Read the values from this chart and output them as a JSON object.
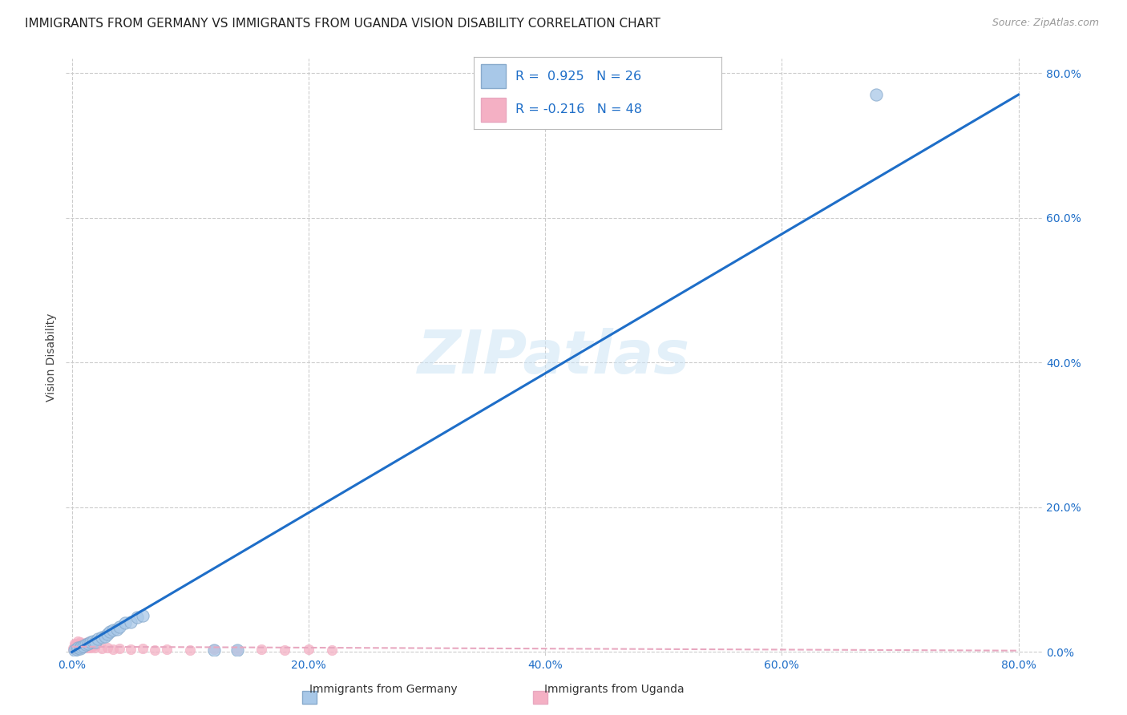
{
  "title": "IMMIGRANTS FROM GERMANY VS IMMIGRANTS FROM UGANDA VISION DISABILITY CORRELATION CHART",
  "source": "Source: ZipAtlas.com",
  "ylabel": "Vision Disability",
  "x_tick_labels": [
    "0.0%",
    "20.0%",
    "40.0%",
    "60.0%",
    "80.0%"
  ],
  "y_tick_labels": [
    "0.0%",
    "20.0%",
    "40.0%",
    "60.0%",
    "80.0%"
  ],
  "xlim": [
    -0.005,
    0.82
  ],
  "ylim": [
    -0.005,
    0.82
  ],
  "grid_color": "#cccccc",
  "background_color": "#ffffff",
  "watermark": "ZIPatlas",
  "germany_scatter": [
    [
      0.002,
      0.003
    ],
    [
      0.004,
      0.004
    ],
    [
      0.005,
      0.006
    ],
    [
      0.007,
      0.005
    ],
    [
      0.008,
      0.007
    ],
    [
      0.01,
      0.008
    ],
    [
      0.012,
      0.01
    ],
    [
      0.014,
      0.012
    ],
    [
      0.016,
      0.014
    ],
    [
      0.018,
      0.015
    ],
    [
      0.02,
      0.014
    ],
    [
      0.022,
      0.018
    ],
    [
      0.025,
      0.02
    ],
    [
      0.028,
      0.022
    ],
    [
      0.03,
      0.025
    ],
    [
      0.032,
      0.028
    ],
    [
      0.035,
      0.03
    ],
    [
      0.038,
      0.032
    ],
    [
      0.04,
      0.035
    ],
    [
      0.045,
      0.04
    ],
    [
      0.05,
      0.042
    ],
    [
      0.055,
      0.048
    ],
    [
      0.06,
      0.05
    ],
    [
      0.12,
      0.003
    ],
    [
      0.14,
      0.003
    ],
    [
      0.68,
      0.77
    ]
  ],
  "uganda_scatter": [
    [
      0.001,
      0.005
    ],
    [
      0.002,
      0.008
    ],
    [
      0.002,
      0.012
    ],
    [
      0.003,
      0.006
    ],
    [
      0.003,
      0.01
    ],
    [
      0.004,
      0.004
    ],
    [
      0.004,
      0.008
    ],
    [
      0.005,
      0.01
    ],
    [
      0.005,
      0.015
    ],
    [
      0.006,
      0.006
    ],
    [
      0.006,
      0.012
    ],
    [
      0.007,
      0.008
    ],
    [
      0.007,
      0.014
    ],
    [
      0.008,
      0.006
    ],
    [
      0.008,
      0.01
    ],
    [
      0.009,
      0.008
    ],
    [
      0.009,
      0.012
    ],
    [
      0.01,
      0.006
    ],
    [
      0.01,
      0.01
    ],
    [
      0.011,
      0.008
    ],
    [
      0.011,
      0.012
    ],
    [
      0.012,
      0.006
    ],
    [
      0.012,
      0.01
    ],
    [
      0.013,
      0.008
    ],
    [
      0.013,
      0.014
    ],
    [
      0.014,
      0.006
    ],
    [
      0.014,
      0.01
    ],
    [
      0.015,
      0.008
    ],
    [
      0.016,
      0.006
    ],
    [
      0.017,
      0.01
    ],
    [
      0.018,
      0.008
    ],
    [
      0.019,
      0.006
    ],
    [
      0.02,
      0.01
    ],
    [
      0.025,
      0.005
    ],
    [
      0.03,
      0.006
    ],
    [
      0.035,
      0.004
    ],
    [
      0.04,
      0.005
    ],
    [
      0.05,
      0.004
    ],
    [
      0.06,
      0.005
    ],
    [
      0.07,
      0.003
    ],
    [
      0.08,
      0.004
    ],
    [
      0.1,
      0.003
    ],
    [
      0.12,
      0.004
    ],
    [
      0.14,
      0.003
    ],
    [
      0.16,
      0.004
    ],
    [
      0.18,
      0.003
    ],
    [
      0.2,
      0.004
    ],
    [
      0.22,
      0.003
    ]
  ],
  "germany_line": [
    [
      0.0,
      0.0
    ],
    [
      0.8,
      0.77
    ]
  ],
  "uganda_line": [
    [
      0.0,
      0.0075
    ],
    [
      0.8,
      0.002
    ]
  ],
  "germany_line_color": "#1e6ec8",
  "uganda_line_color": "#e8a8c0",
  "germany_scatter_color": "#a8c8e8",
  "uganda_scatter_color": "#f4b0c4",
  "scatter_size_germany": 120,
  "scatter_size_uganda": 80,
  "scatter_alpha": 0.75,
  "title_fontsize": 11,
  "axis_label_fontsize": 10,
  "tick_fontsize": 10,
  "legend_r1": "R =  0.925   N = 26",
  "legend_r2": "R = -0.216   N = 48",
  "legend_text_color": "#1e6ec8",
  "bottom_legend_germany": "Immigrants from Germany",
  "bottom_legend_uganda": "Immigrants from Uganda"
}
